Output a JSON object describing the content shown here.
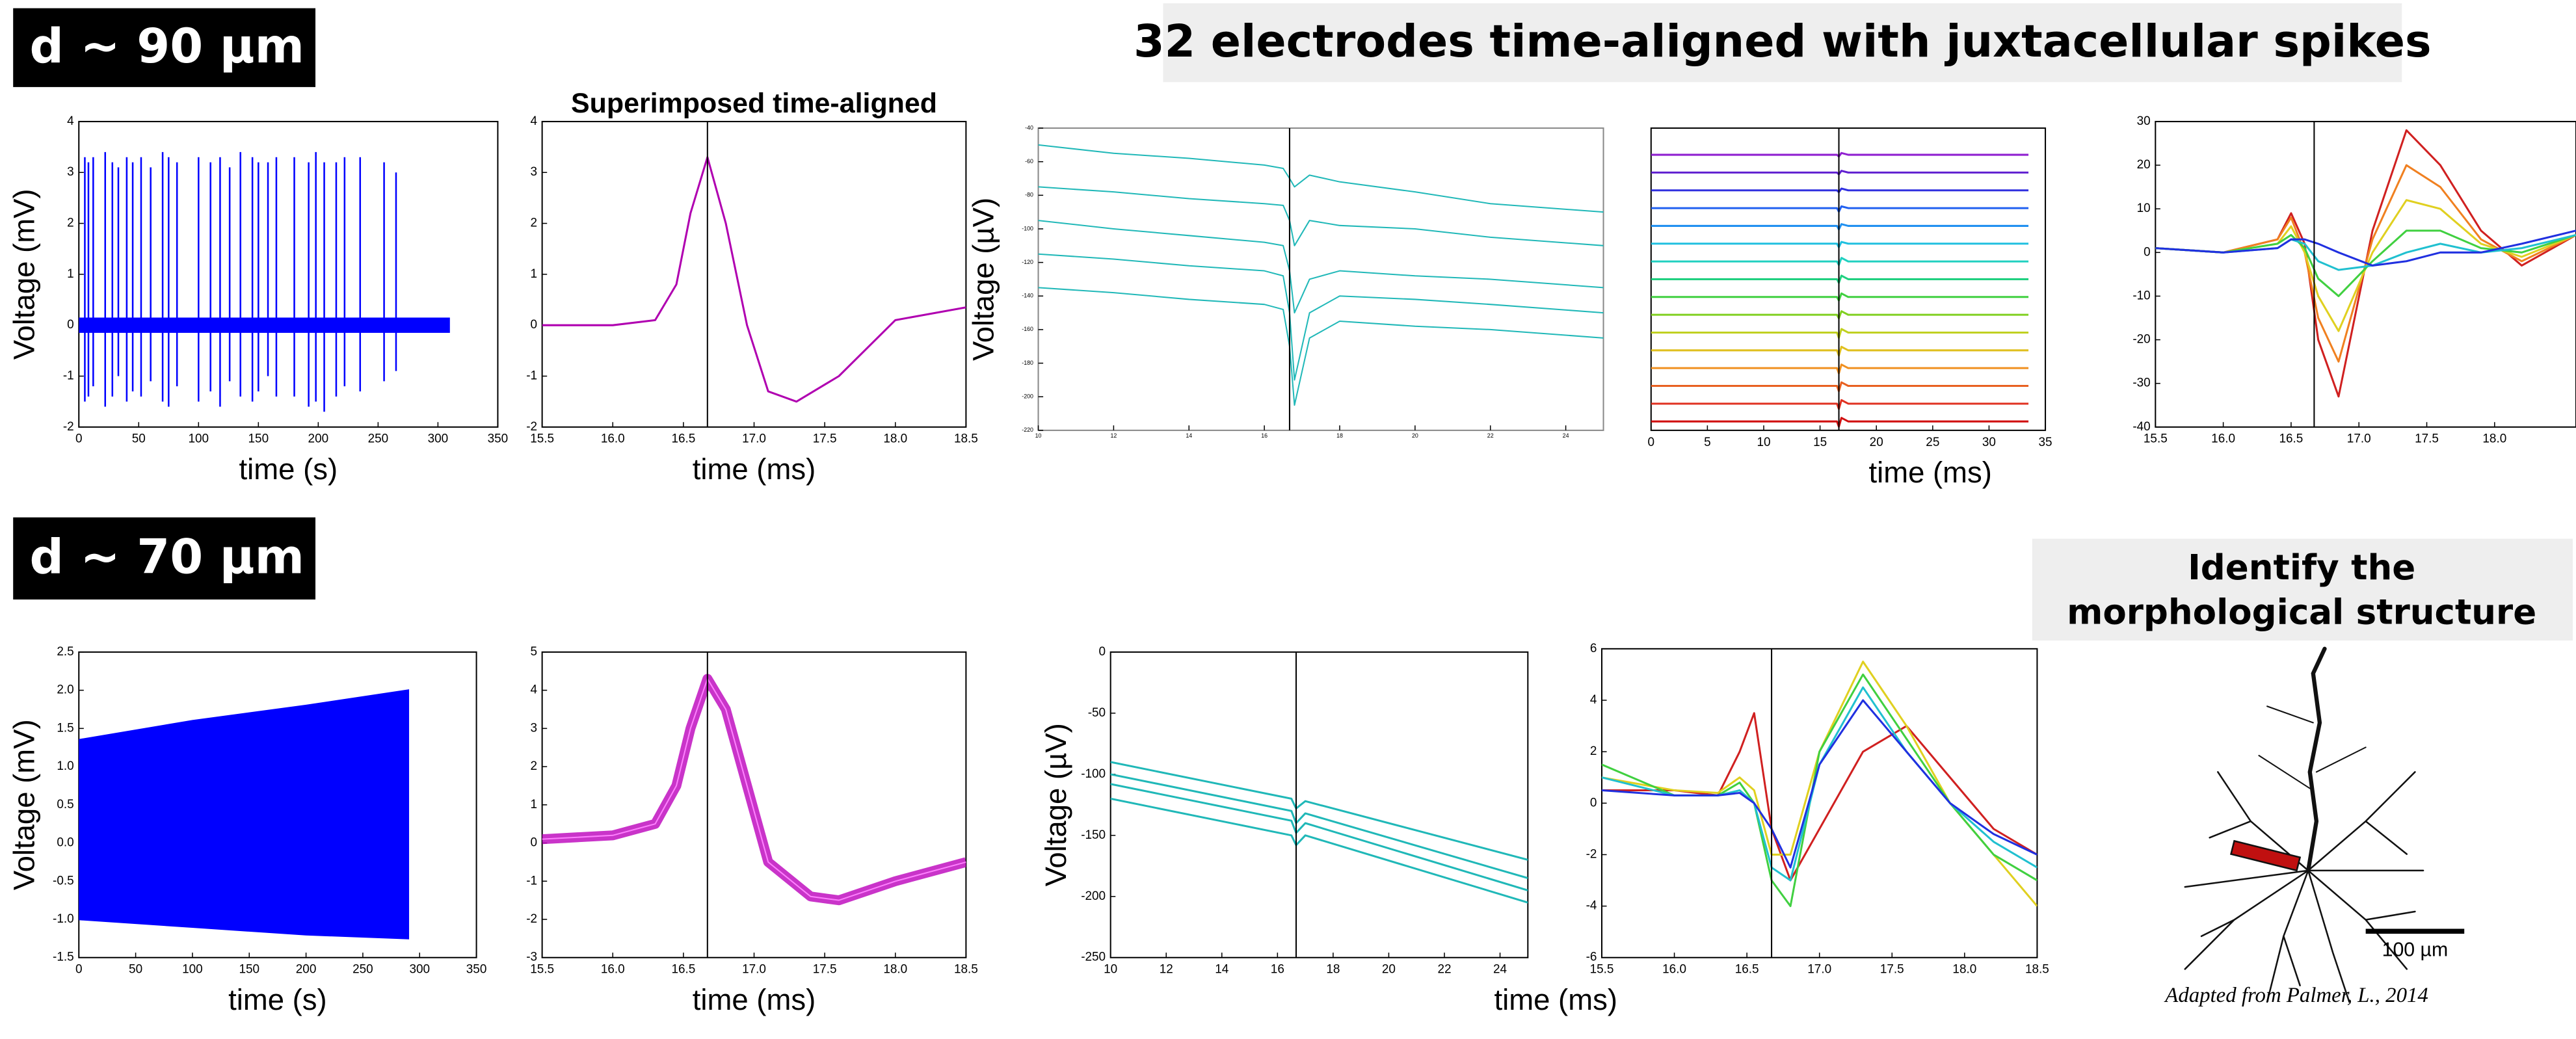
{
  "labels": {
    "d90": "d ~ 90 µm",
    "d70": "d ~ 70 µm",
    "heading": "32 electrodes time-aligned with juxtacellular spikes",
    "morphology_heading": [
      "Identify the",
      "morphological structure"
    ],
    "scale_bar": "100 µm",
    "credit": "Adapted from Palmer, L.,  2014"
  },
  "chart_data": [
    {
      "type": "spikes",
      "xlabel": "time (s)",
      "ylabel": "Voltage (mV)",
      "color": "#0000ff",
      "xlim": [
        0,
        350
      ],
      "xticks": [
        0,
        50,
        100,
        150,
        200,
        250,
        300,
        350
      ],
      "ylim": [
        -2,
        4
      ],
      "yticks": [
        -2,
        -1,
        0,
        1,
        2,
        3,
        4
      ],
      "duration": 310,
      "band": [
        -0.15,
        0.15
      ],
      "x": [
        5,
        8,
        12,
        22,
        28,
        33,
        40,
        45,
        52,
        60,
        70,
        75,
        82,
        100,
        110,
        118,
        126,
        135,
        145,
        150,
        158,
        165,
        180,
        192,
        198,
        205,
        215,
        222,
        235,
        255,
        265
      ],
      "values": [
        3.3,
        3.2,
        3.3,
        3.4,
        3.2,
        3.1,
        3.3,
        3.2,
        3.3,
        3.1,
        3.4,
        3.3,
        3.2,
        3.3,
        3.2,
        3.3,
        3.1,
        3.4,
        3.3,
        3.2,
        3.2,
        3.3,
        3.3,
        3.2,
        3.4,
        3.2,
        3.2,
        3.3,
        3.3,
        3.2,
        3.0
      ],
      "troughs": [
        -1.5,
        -1.4,
        -1.2,
        -1.6,
        -1.4,
        -1.0,
        -1.5,
        -1.3,
        -1.4,
        -1.1,
        -1.5,
        -1.6,
        -1.2,
        -1.5,
        -1.3,
        -1.6,
        -1.1,
        -1.4,
        -1.5,
        -1.3,
        -1.0,
        -1.4,
        -1.4,
        -1.6,
        -1.5,
        -1.7,
        -1.4,
        -1.2,
        -1.3,
        -1.1,
        -0.9
      ]
    },
    {
      "type": "line",
      "title": "Superimposed time-aligned",
      "xlabel": "time (ms)",
      "xlim": [
        15.5,
        18.5
      ],
      "xticks": [
        15.5,
        {
          "value": 16,
          "label": "16.0"
        },
        16.5,
        {
          "value": 17,
          "label": "17.0"
        },
        17.5,
        {
          "value": 18,
          "label": "18.0"
        },
        18.5
      ],
      "ylim": [
        -2,
        4
      ],
      "yticks": [
        -2,
        -1,
        0,
        1,
        2,
        3,
        4
      ],
      "vline": 16.67,
      "x": [
        15.5,
        16.0,
        16.3,
        16.45,
        16.55,
        16.67,
        16.8,
        16.95,
        17.1,
        17.3,
        17.6,
        18.0,
        18.5
      ],
      "series": [
        {
          "color": "#b000b0",
          "values": [
            0,
            0,
            0.1,
            0.8,
            2.2,
            3.3,
            2.0,
            0,
            -1.3,
            -1.5,
            -1.0,
            0.1,
            0.35
          ]
        }
      ]
    },
    {
      "type": "line",
      "ylabel": "Voltage (µV)",
      "tiny": true,
      "xlim": [
        10,
        25
      ],
      "xticks": [
        10,
        12,
        14,
        16,
        18,
        20,
        22,
        24
      ],
      "ylim": [
        -220,
        -40
      ],
      "yticks": [
        -40,
        -60,
        -80,
        -100,
        -120,
        -140,
        -160,
        -180,
        -200,
        -220
      ],
      "vline": 16.67,
      "x": [
        10,
        12,
        14,
        16,
        16.5,
        16.67,
        16.8,
        17.2,
        18,
        20,
        22,
        25
      ],
      "series": [
        {
          "color": "#20b8b8",
          "values": [
            -50,
            -55,
            -58,
            -62,
            -64,
            -70,
            -75,
            -68,
            -72,
            -78,
            -85,
            -90
          ]
        },
        {
          "color": "#20b8b8",
          "values": [
            -75,
            -78,
            -82,
            -85,
            -86,
            -95,
            -110,
            -95,
            -98,
            -100,
            -105,
            -110
          ]
        },
        {
          "color": "#20b8b8",
          "values": [
            -95,
            -100,
            -104,
            -108,
            -110,
            -125,
            -150,
            -130,
            -125,
            -128,
            -130,
            -135
          ]
        },
        {
          "color": "#20b8b8",
          "values": [
            -115,
            -118,
            -122,
            -125,
            -128,
            -150,
            -190,
            -150,
            -140,
            -142,
            -145,
            -150
          ]
        },
        {
          "color": "#20b8b8",
          "values": [
            -135,
            -138,
            -142,
            -145,
            -148,
            -170,
            -205,
            -165,
            -155,
            -158,
            -160,
            -165
          ]
        }
      ]
    },
    {
      "type": "line",
      "xlabel": "time (ms)",
      "xlim": [
        0,
        35
      ],
      "xticks": [
        0,
        5,
        10,
        15,
        20,
        25,
        30,
        35
      ],
      "ylim": [
        -5,
        165
      ],
      "vline": 16.67,
      "x": [
        0,
        16.5,
        16.67,
        16.9,
        17.5,
        33.5
      ],
      "series": [
        {
          "color": "#d01010",
          "values": [
            0,
            0,
            -3,
            2,
            0,
            0
          ]
        },
        {
          "color": "#e03020",
          "values": [
            10,
            10,
            7,
            12,
            10,
            10
          ]
        },
        {
          "color": "#e86020",
          "values": [
            20,
            20,
            17,
            22,
            20,
            20
          ]
        },
        {
          "color": "#f09020",
          "values": [
            30,
            30,
            27,
            32,
            30,
            30
          ]
        },
        {
          "color": "#e0c020",
          "values": [
            40,
            40,
            37,
            42,
            40,
            40
          ]
        },
        {
          "color": "#c0d020",
          "values": [
            50,
            50,
            47,
            52,
            50,
            50
          ]
        },
        {
          "color": "#80d020",
          "values": [
            60,
            60,
            58,
            62,
            60,
            60
          ]
        },
        {
          "color": "#40d040",
          "values": [
            70,
            70,
            68,
            72,
            70,
            70
          ]
        },
        {
          "color": "#20d080",
          "values": [
            80,
            80,
            78,
            82,
            80,
            80
          ]
        },
        {
          "color": "#20d0c0",
          "values": [
            90,
            90,
            88,
            92,
            90,
            90
          ]
        },
        {
          "color": "#20c0e0",
          "values": [
            100,
            100,
            98,
            101,
            100,
            100
          ]
        },
        {
          "color": "#2090f0",
          "values": [
            110,
            110,
            108,
            111,
            110,
            110
          ]
        },
        {
          "color": "#2060f0",
          "values": [
            120,
            120,
            118,
            121,
            120,
            120
          ]
        },
        {
          "color": "#3030e0",
          "values": [
            130,
            130,
            129,
            131,
            130,
            130
          ]
        },
        {
          "color": "#6020d0",
          "values": [
            140,
            140,
            139,
            141,
            140,
            140
          ]
        },
        {
          "color": "#9020d0",
          "values": [
            150,
            150,
            149,
            151,
            150,
            150
          ]
        }
      ]
    },
    {
      "type": "line",
      "xlim": [
        15.5,
        18.6
      ],
      "xticks": [
        15.5,
        {
          "value": 16,
          "label": "16.0"
        },
        16.5,
        {
          "value": 17,
          "label": "17.0"
        },
        17.5,
        {
          "value": 18,
          "label": "18.0"
        }
      ],
      "ylim": [
        -40,
        30
      ],
      "yticks": [
        -40,
        -30,
        -20,
        -10,
        0,
        10,
        20,
        30
      ],
      "vline": 16.67,
      "x": [
        15.5,
        16.0,
        16.4,
        16.5,
        16.6,
        16.7,
        16.85,
        17.1,
        17.35,
        17.6,
        17.9,
        18.2,
        18.6
      ],
      "series": [
        {
          "color": "#d02020",
          "values": [
            1,
            0,
            3,
            9,
            2,
            -20,
            -33,
            5,
            28,
            20,
            5,
            -3,
            4
          ]
        },
        {
          "color": "#f08020",
          "values": [
            1,
            0,
            3,
            8,
            0,
            -15,
            -25,
            3,
            20,
            15,
            3,
            -2,
            4
          ]
        },
        {
          "color": "#e0d020",
          "values": [
            1,
            0,
            2,
            6,
            0,
            -10,
            -18,
            0,
            12,
            10,
            2,
            -1,
            4
          ]
        },
        {
          "color": "#40d040",
          "values": [
            1,
            0,
            2,
            4,
            1,
            -6,
            -10,
            -2,
            5,
            5,
            1,
            0,
            4
          ]
        },
        {
          "color": "#20c0d0",
          "values": [
            1,
            0,
            1,
            3,
            2,
            -2,
            -4,
            -3,
            0,
            2,
            0,
            1,
            4
          ]
        },
        {
          "color": "#2030e0",
          "values": [
            1,
            0,
            1,
            3,
            3,
            2,
            0,
            -3,
            -2,
            0,
            0,
            2,
            5
          ]
        }
      ]
    },
    {
      "type": "band",
      "xlabel": "time (s)",
      "ylabel": "Voltage (mV)",
      "color": "#0000ff",
      "xlim": [
        0,
        350
      ],
      "xticks": [
        0,
        50,
        100,
        150,
        200,
        250,
        300,
        350
      ],
      "ylim": [
        -1.5,
        2.5
      ],
      "yticks": [
        -1.5,
        {
          "value": -1,
          "label": "-1.0"
        },
        -0.5,
        {
          "value": 0,
          "label": "0.0"
        },
        0.5,
        {
          "value": 1,
          "label": "1.0"
        },
        1.5,
        {
          "value": 2,
          "label": "2.0"
        },
        2.5
      ],
      "x": [
        0,
        100,
        200,
        290
      ],
      "upper": [
        1.35,
        1.6,
        1.8,
        2.0
      ],
      "lower": [
        -1.0,
        -1.1,
        -1.2,
        -1.25
      ]
    },
    {
      "type": "line",
      "xlabel": "time (ms)",
      "xlim": [
        15.5,
        18.5
      ],
      "xticks": [
        15.5,
        {
          "value": 16,
          "label": "16.0"
        },
        16.5,
        {
          "value": 17,
          "label": "17.0"
        },
        17.5,
        {
          "value": 18,
          "label": "18.0"
        },
        18.5
      ],
      "ylim": [
        -3,
        5
      ],
      "yticks": [
        -3,
        -2,
        -1,
        0,
        1,
        2,
        3,
        4,
        5
      ],
      "vline": 16.67,
      "thick": true,
      "x": [
        15.5,
        16.0,
        16.3,
        16.45,
        16.55,
        16.67,
        16.8,
        16.95,
        17.1,
        17.4,
        17.6,
        18.0,
        18.5
      ],
      "series": [
        {
          "color": "#c010c0",
          "values": [
            0.1,
            0.2,
            0.5,
            1.5,
            3.0,
            4.3,
            3.5,
            1.5,
            -0.5,
            -1.4,
            -1.5,
            -1.0,
            -0.5
          ]
        }
      ]
    },
    {
      "type": "line",
      "xlabel": "time (ms)",
      "ylabel": "Voltage (µV)",
      "xlim": [
        10,
        25
      ],
      "xticks": [
        10,
        12,
        14,
        16,
        18,
        20,
        22,
        24
      ],
      "ylim": [
        -250,
        0
      ],
      "yticks": [
        -250,
        -200,
        -150,
        -100,
        -50,
        0
      ],
      "vline": 16.67,
      "x": [
        10,
        16.5,
        16.67,
        17,
        25
      ],
      "series": [
        {
          "color": "#20b8b8",
          "values": [
            -90,
            -120,
            -128,
            -122,
            -170
          ]
        },
        {
          "color": "#20b8b8",
          "values": [
            -100,
            -130,
            -140,
            -132,
            -185
          ]
        },
        {
          "color": "#20b8b8",
          "values": [
            -108,
            -138,
            -148,
            -140,
            -195
          ]
        },
        {
          "color": "#20b8b8",
          "values": [
            -120,
            -150,
            -158,
            -150,
            -205
          ]
        }
      ]
    },
    {
      "type": "line",
      "xlim": [
        15.5,
        18.5
      ],
      "xticks": [
        15.5,
        {
          "value": 16,
          "label": "16.0"
        },
        16.5,
        {
          "value": 17,
          "label": "17.0"
        },
        17.5,
        {
          "value": 18,
          "label": "18.0"
        },
        18.5
      ],
      "ylim": [
        -6,
        6
      ],
      "yticks": [
        -6,
        -4,
        -2,
        0,
        2,
        4,
        6
      ],
      "vline": 16.67,
      "x": [
        15.5,
        16.0,
        16.3,
        16.45,
        16.55,
        16.67,
        16.8,
        17.0,
        17.3,
        17.6,
        17.9,
        18.2,
        18.5
      ],
      "series": [
        {
          "color": "#d02020",
          "values": [
            0.5,
            0.5,
            0.3,
            2,
            3.5,
            -1,
            -3,
            -1,
            2,
            3,
            1,
            -1,
            -2
          ]
        },
        {
          "color": "#e0d020",
          "values": [
            1,
            0.5,
            0.4,
            1,
            0.5,
            -2,
            -2,
            2,
            5.5,
            3,
            0,
            -2,
            -4
          ]
        },
        {
          "color": "#40d040",
          "values": [
            1.5,
            0.3,
            0.3,
            0.8,
            0,
            -3,
            -4,
            2,
            5,
            2.5,
            0,
            -2,
            -3
          ]
        },
        {
          "color": "#20c0d0",
          "values": [
            1,
            0.3,
            0.3,
            0.5,
            0,
            -2.5,
            -3,
            1.5,
            4.5,
            2,
            0,
            -1.5,
            -2.5
          ]
        },
        {
          "color": "#2030e0",
          "values": [
            0.5,
            0.3,
            0.3,
            0.4,
            0,
            -1,
            -2.5,
            1.5,
            4,
            2,
            0,
            -1.2,
            -2
          ]
        }
      ]
    }
  ]
}
